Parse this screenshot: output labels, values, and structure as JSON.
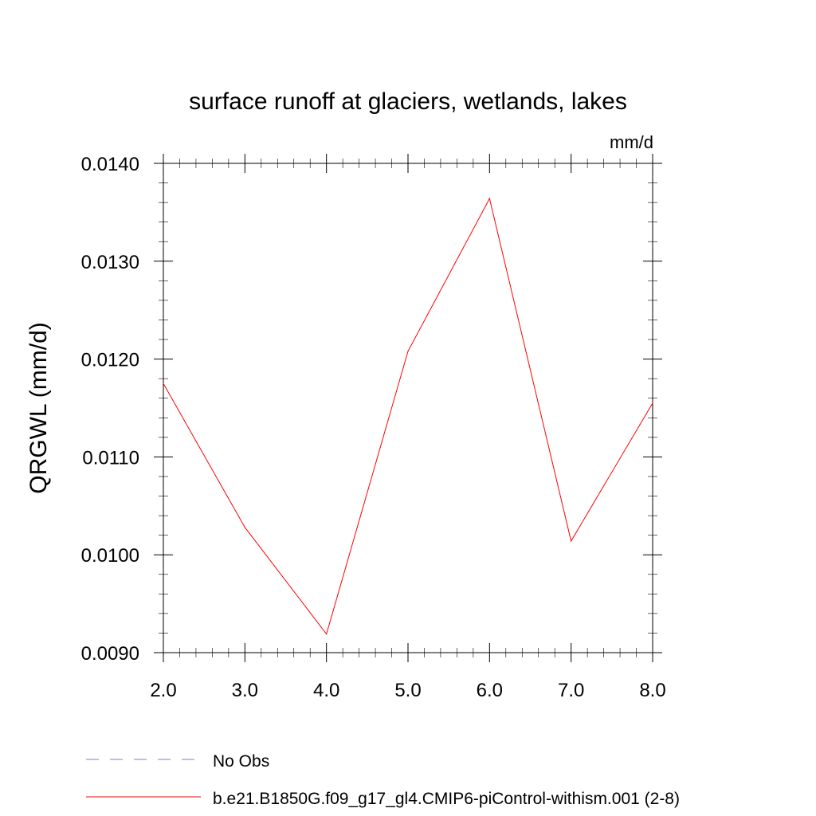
{
  "chart_data": {
    "type": "line",
    "title": "surface runoff at glaciers, wetlands, lakes",
    "units_label": "mm/d",
    "ylabel": "QRGWL  (mm/d)",
    "xlim": [
      2.0,
      8.0
    ],
    "ylim": [
      0.009,
      0.014
    ],
    "x_ticks": [
      "2.0",
      "3.0",
      "4.0",
      "5.0",
      "6.0",
      "7.0",
      "8.0"
    ],
    "y_ticks": [
      "0.0090",
      "0.0100",
      "0.0110",
      "0.0120",
      "0.0130",
      "0.0140"
    ],
    "grid": false,
    "legend_position": "bottom",
    "series": [
      {
        "name": "No Obs",
        "style": "dashed",
        "color": "#8a80b8",
        "x": [],
        "y": []
      },
      {
        "name": "b.e21.B1850G.f09_g17_gl4.CMIP6-piControl-withism.001 (2-8)",
        "style": "solid",
        "color": "#ff0000",
        "x": [
          2.0,
          3.0,
          4.0,
          5.0,
          6.0,
          7.0,
          8.0
        ],
        "y": [
          0.01175,
          0.01028,
          0.00919,
          0.01208,
          0.01364,
          0.01014,
          0.01155
        ]
      }
    ]
  }
}
